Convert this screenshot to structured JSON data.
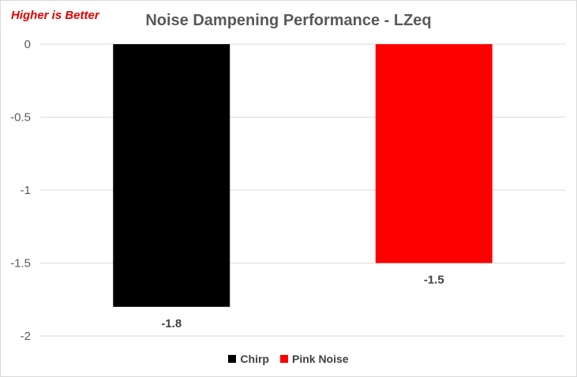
{
  "chart_data": {
    "type": "bar",
    "title": "Noise Dampening Performance - LZeq",
    "annotation": "Higher is Better",
    "xlabel": "",
    "ylabel": "",
    "ylim": [
      -2,
      0
    ],
    "yticks": [
      0,
      -0.5,
      -1,
      -1.5,
      -2
    ],
    "ytick_labels": [
      "0",
      "-0.5",
      "-1",
      "-1.5",
      "-2"
    ],
    "grid": true,
    "legend_position": "bottom",
    "series": [
      {
        "name": "Chirp",
        "value": -1.8,
        "label": "-1.8",
        "color": "#000000"
      },
      {
        "name": "Pink Noise",
        "value": -1.5,
        "label": "-1.5",
        "color": "#ff0000"
      }
    ]
  }
}
